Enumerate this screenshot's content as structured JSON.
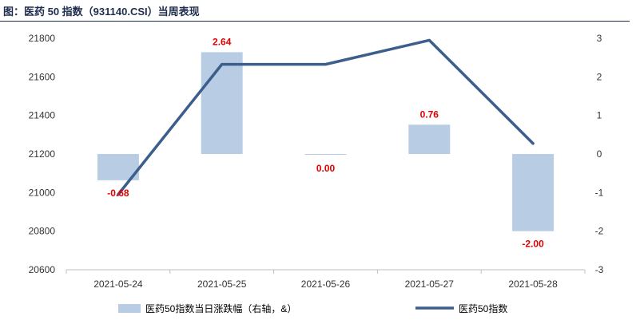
{
  "title": "图：医药 50 指数（931140.CSI）当周表现",
  "chart_data": {
    "type": "bar+line",
    "categories": [
      "2021-05-24",
      "2021-05-25",
      "2021-05-26",
      "2021-05-27",
      "2021-05-28"
    ],
    "series": [
      {
        "name": "医药50指数当日涨跌幅（右轴，&）",
        "type": "bar",
        "axis": "right",
        "values": [
          -0.68,
          2.64,
          0.0,
          0.76,
          -2.0
        ],
        "value_labels": [
          "-0.68",
          "2.64",
          "0.00",
          "0.76",
          "-2.00"
        ],
        "color": "#b8cce4"
      },
      {
        "name": "医药50指数",
        "type": "line",
        "axis": "left",
        "values": [
          20990,
          21665,
          21665,
          21790,
          21255
        ],
        "color": "#3b5e8c"
      }
    ],
    "left_axis": {
      "min": 20600,
      "max": 21800,
      "ticks": [
        "21800",
        "21600",
        "21400",
        "21200",
        "21000",
        "20800",
        "20600"
      ]
    },
    "right_axis": {
      "min": -3,
      "max": 3,
      "ticks": [
        "3",
        "2",
        "1",
        "0",
        "-1",
        "-2",
        "-3"
      ]
    },
    "grid": false,
    "legend_position": "bottom"
  }
}
